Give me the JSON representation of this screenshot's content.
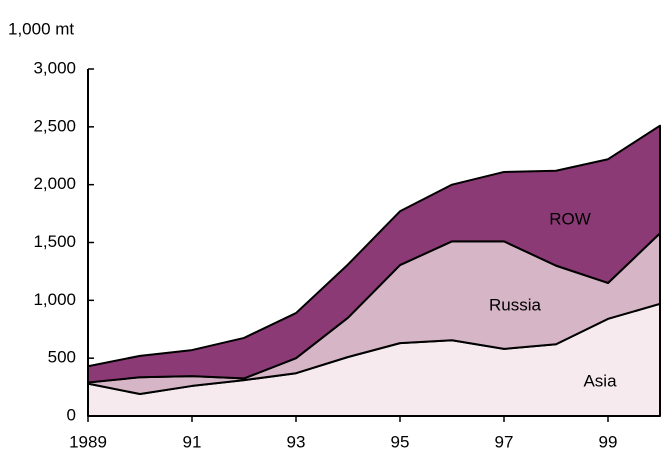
{
  "chart_data": {
    "type": "stacked_area",
    "y_label": "1,000 mt",
    "x": [
      1989,
      1990,
      1991,
      1992,
      1993,
      1994,
      1995,
      1996,
      1997,
      1998,
      1999,
      2000
    ],
    "xlim": [
      1989,
      2000
    ],
    "xticks": [
      {
        "value": 1989,
        "label": "1989"
      },
      {
        "value": 1991,
        "label": "91"
      },
      {
        "value": 1993,
        "label": "93"
      },
      {
        "value": 1995,
        "label": "95"
      },
      {
        "value": 1997,
        "label": "97"
      },
      {
        "value": 1999,
        "label": "99"
      }
    ],
    "ylim": [
      0,
      3000
    ],
    "yticks": [
      0,
      500,
      {
        "value": 1000,
        "label": "1,000"
      },
      {
        "value": 1500,
        "label": "1,500"
      },
      {
        "value": 2000,
        "label": "2,000"
      },
      {
        "value": 2500,
        "label": "2,500"
      },
      {
        "value": 3000,
        "label": "3,000"
      }
    ],
    "series": [
      {
        "name": "Asia",
        "color": "#f6eaee",
        "values": [
          280,
          190,
          260,
          310,
          370,
          510,
          630,
          655,
          580,
          620,
          840,
          970
        ]
      },
      {
        "name": "Russia",
        "color": "#d5b5c6",
        "values": [
          10,
          145,
          85,
          15,
          130,
          340,
          675,
          855,
          930,
          680,
          310,
          610
        ]
      },
      {
        "name": "ROW",
        "color": "#8c3a76",
        "values": [
          140,
          185,
          225,
          350,
          390,
          460,
          465,
          490,
          600,
          820,
          1070,
          930
        ]
      }
    ]
  }
}
